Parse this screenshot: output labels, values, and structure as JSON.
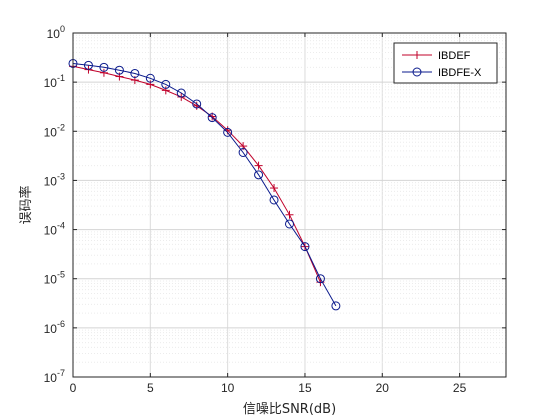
{
  "chart_data": {
    "type": "line",
    "title": "",
    "xlabel": "信噪比SNR(dB)",
    "ylabel": "误码率",
    "xlim": [
      0,
      28
    ],
    "ylim": [
      1e-07,
      1
    ],
    "yscale": "log",
    "grid": true,
    "minor_grid": true,
    "legend_position": "top-right",
    "xticks": [
      0,
      5,
      10,
      15,
      20,
      25
    ],
    "yticks": [
      {
        "base": "10",
        "exp": "0",
        "value": 1
      },
      {
        "base": "10",
        "exp": "-1",
        "value": 0.1
      },
      {
        "base": "10",
        "exp": "-2",
        "value": 0.01
      },
      {
        "base": "10",
        "exp": "-3",
        "value": 0.001
      },
      {
        "base": "10",
        "exp": "-4",
        "value": 0.0001
      },
      {
        "base": "10",
        "exp": "-5",
        "value": 1e-05
      },
      {
        "base": "10",
        "exp": "-6",
        "value": 1e-06
      },
      {
        "base": "10",
        "exp": "-7",
        "value": 1e-07
      }
    ],
    "series": [
      {
        "name": "IBDEF",
        "color": "#c0002a",
        "marker": "plus",
        "x": [
          0,
          1,
          2,
          3,
          4,
          5,
          6,
          7,
          8,
          9,
          10,
          11,
          12,
          13,
          14,
          15,
          16
        ],
        "y": [
          0.21,
          0.18,
          0.155,
          0.13,
          0.11,
          0.09,
          0.068,
          0.05,
          0.033,
          0.02,
          0.0105,
          0.005,
          0.002,
          0.0007,
          0.0002,
          4.5e-05,
          8.5e-06
        ]
      },
      {
        "name": "IBDFE-X",
        "color": "#0a1a8c",
        "marker": "circle",
        "x": [
          0,
          1,
          2,
          3,
          4,
          5,
          6,
          7,
          8,
          9,
          10,
          11,
          12,
          13,
          14,
          15,
          16,
          17
        ],
        "y": [
          0.24,
          0.22,
          0.2,
          0.175,
          0.15,
          0.12,
          0.09,
          0.06,
          0.036,
          0.019,
          0.0095,
          0.0037,
          0.0013,
          0.0004,
          0.00013,
          4.5e-05,
          1e-05,
          2.8e-06
        ]
      }
    ]
  }
}
